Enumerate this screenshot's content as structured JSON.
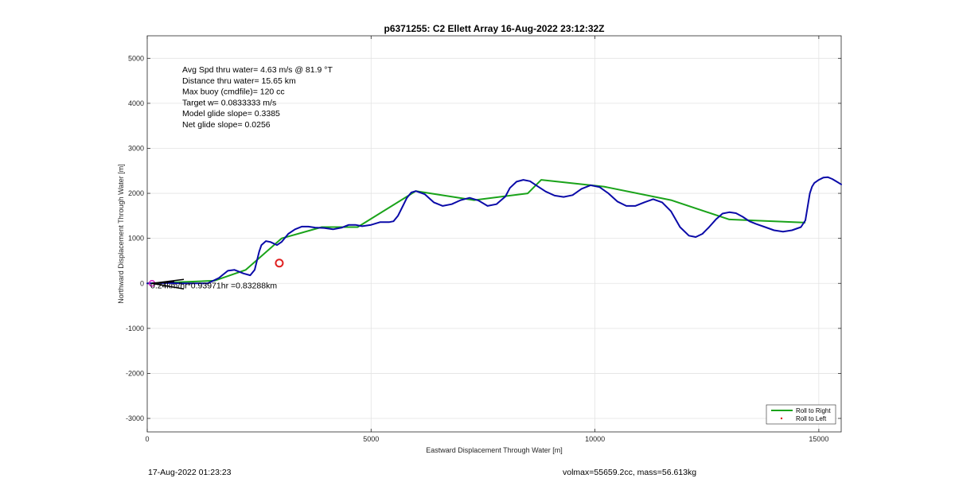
{
  "chart_data": {
    "type": "line",
    "title": "p6371255: C2 Ellett Array 16-Aug-2022 23:12:32Z",
    "xlabel": "Eastward Displacement Through Water [m]",
    "ylabel": "Northward Displacement Through Water [m]",
    "xlim": [
      0,
      15500
    ],
    "ylim": [
      -3300,
      5500
    ],
    "xticks": [
      0,
      5000,
      10000,
      15000
    ],
    "yticks": [
      -3000,
      -2000,
      -1000,
      0,
      1000,
      2000,
      3000,
      4000,
      5000
    ],
    "grid": true,
    "legend_position": "bottom-right",
    "annotations": [
      "Avg Spd thru water=  4.63 m/s @  81.9 °T",
      "Distance thru water= 15.65 km",
      "Max buoy (cmdfile)= 120 cc",
      "Target w= 0.0833333 m/s",
      "Model glide slope= 0.3385",
      "Net glide slope= 0.0256"
    ],
    "point_label": "0.24km/hr*0.93971hr =0.83288km",
    "series": [
      {
        "name": "Roll to Right",
        "color": "#1aa31a",
        "x": [
          0,
          1500,
          2200,
          3000,
          3900,
          4700,
          6000,
          7300,
          8500,
          8800,
          10200,
          11700,
          13000,
          14700
        ],
        "y": [
          0,
          60,
          300,
          1000,
          1250,
          1250,
          2050,
          1850,
          2000,
          2300,
          2150,
          1850,
          1420,
          1350
        ]
      },
      {
        "name": "Roll to Left",
        "color": "#e02020",
        "x": [
          2950
        ],
        "y": [
          450
        ]
      },
      {
        "name": "",
        "color": "#0a0aa8",
        "x": [
          0,
          400,
          800,
          1100,
          1350,
          1600,
          1800,
          1950,
          2150,
          2300,
          2400,
          2500,
          2550,
          2650,
          2750,
          2900,
          3000,
          3150,
          3300,
          3450,
          3600,
          3750,
          3950,
          4150,
          4350,
          4500,
          4650,
          4800,
          5000,
          5200,
          5400,
          5500,
          5600,
          5700,
          5800,
          5900,
          6000,
          6200,
          6400,
          6600,
          6800,
          7000,
          7200,
          7400,
          7600,
          7800,
          8000,
          8100,
          8250,
          8400,
          8550,
          8700,
          8900,
          9100,
          9300,
          9500,
          9700,
          9900,
          10100,
          10300,
          10500,
          10700,
          10900,
          11100,
          11300,
          11500,
          11700,
          11900,
          12100,
          12250,
          12400,
          12550,
          12700,
          12850,
          13000,
          13150,
          13300,
          13450,
          13600,
          13800,
          14000,
          14200,
          14400,
          14600,
          14700,
          14750,
          14800,
          14850,
          14900,
          15000,
          15100,
          15200,
          15300,
          15400,
          15500
        ],
        "y": [
          0,
          10,
          0,
          0,
          0,
          120,
          280,
          300,
          220,
          180,
          300,
          700,
          850,
          940,
          920,
          850,
          920,
          1100,
          1200,
          1260,
          1260,
          1240,
          1230,
          1200,
          1240,
          1300,
          1300,
          1270,
          1300,
          1360,
          1360,
          1380,
          1500,
          1700,
          1900,
          2020,
          2050,
          1980,
          1800,
          1720,
          1760,
          1850,
          1900,
          1840,
          1720,
          1760,
          1930,
          2120,
          2260,
          2300,
          2270,
          2170,
          2040,
          1950,
          1920,
          1960,
          2100,
          2180,
          2140,
          2000,
          1820,
          1720,
          1720,
          1800,
          1870,
          1800,
          1600,
          1250,
          1060,
          1030,
          1100,
          1250,
          1420,
          1550,
          1580,
          1560,
          1480,
          1380,
          1320,
          1250,
          1180,
          1150,
          1180,
          1250,
          1400,
          1700,
          2000,
          2150,
          2230,
          2300,
          2350,
          2360,
          2320,
          2260,
          2200
        ]
      }
    ]
  },
  "legend": {
    "items": [
      "Roll to Right",
      "Roll to Left"
    ]
  },
  "footer": {
    "left": "17-Aug-2022 01:23:23",
    "right": "volmax=55659.2cc, mass=56.613kg"
  }
}
